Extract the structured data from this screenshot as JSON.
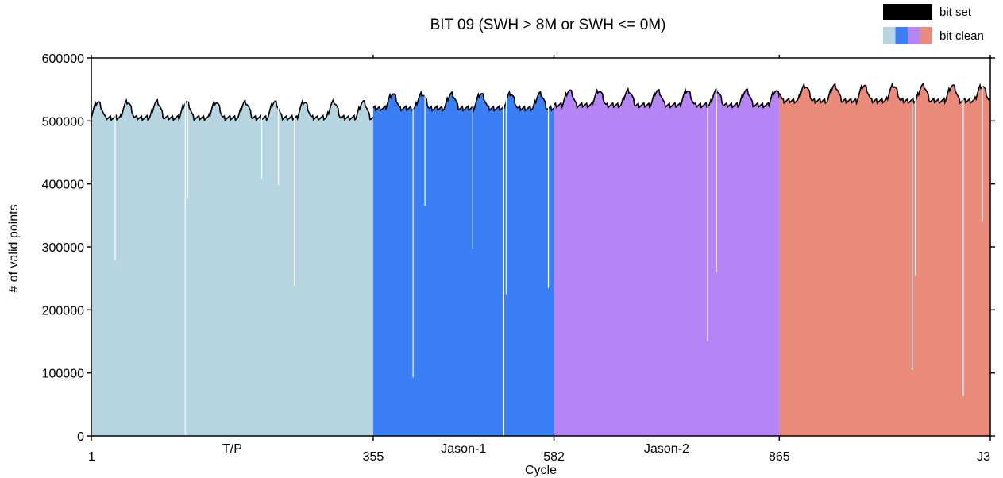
{
  "chart_data": {
    "type": "area",
    "title": "BIT 09 (SWH > 8M or SWH <= 0M)",
    "xlabel": "Cycle",
    "ylabel": "# of valid points",
    "ylim": [
      0,
      600000
    ],
    "xlim": [
      1,
      1130
    ],
    "y_ticks": [
      {
        "value": 0,
        "label": "0"
      },
      {
        "value": 100000,
        "label": "100000"
      },
      {
        "value": 200000,
        "label": "200000"
      },
      {
        "value": 300000,
        "label": "300000"
      },
      {
        "value": 400000,
        "label": "400000"
      },
      {
        "value": 500000,
        "label": "500000"
      },
      {
        "value": 600000,
        "label": "600000"
      }
    ],
    "x_ticks": [
      {
        "value": 1,
        "label": "1"
      },
      {
        "value": 355,
        "label": "355"
      },
      {
        "value": 582,
        "label": "582"
      },
      {
        "value": 865,
        "label": "865"
      },
      {
        "value": 1130,
        "label": "J3"
      }
    ],
    "missions": [
      {
        "label": "T/P",
        "start": 1,
        "end": 355,
        "color": "#b7d5e0",
        "baseline": 505000,
        "amplitude": 25000
      },
      {
        "label": "Jason-1",
        "start": 355,
        "end": 582,
        "color": "#3a7ff5",
        "baseline": 520000,
        "amplitude": 23000
      },
      {
        "label": "Jason-2",
        "start": 582,
        "end": 865,
        "color": "#b685f5",
        "baseline": 525000,
        "amplitude": 23000
      },
      {
        "label": "",
        "start": 865,
        "end": 1130,
        "color": "#e98a7a",
        "baseline": 532000,
        "amplitude": 24000
      }
    ],
    "seasonal_period_cycles": 37,
    "series": [
      {
        "name": "bit set",
        "color": "#000000",
        "note_value_typical": 2000
      },
      {
        "name": "bit clean",
        "colors": [
          "#b7d5e0",
          "#3a7ff5",
          "#b685f5",
          "#e98a7a"
        ]
      }
    ],
    "dropouts": [
      {
        "cycle": 31,
        "value": 278000
      },
      {
        "cycle": 119,
        "value": 0
      },
      {
        "cycle": 122,
        "value": 378000
      },
      {
        "cycle": 256,
        "value": 238000
      },
      {
        "cycle": 236,
        "value": 398000
      },
      {
        "cycle": 215,
        "value": 408000
      },
      {
        "cycle": 405,
        "value": 93000
      },
      {
        "cycle": 420,
        "value": 365000
      },
      {
        "cycle": 480,
        "value": 298000
      },
      {
        "cycle": 519,
        "value": 0
      },
      {
        "cycle": 522,
        "value": 225000
      },
      {
        "cycle": 575,
        "value": 235000
      },
      {
        "cycle": 775,
        "value": 150000
      },
      {
        "cycle": 786,
        "value": 260000
      },
      {
        "cycle": 1032,
        "value": 105000
      },
      {
        "cycle": 1036,
        "value": 255000
      },
      {
        "cycle": 1096,
        "value": 63000
      },
      {
        "cycle": 1120,
        "value": 340000
      }
    ],
    "legend_position": "top-right",
    "grid": false
  }
}
